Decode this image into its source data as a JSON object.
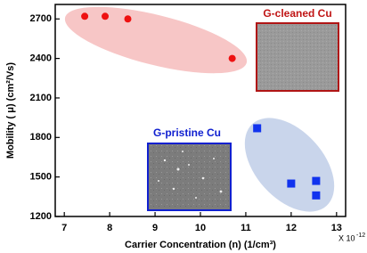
{
  "chart_data": {
    "type": "scatter",
    "xlabel": "Carrier Concentration (n) (1/cm³)",
    "ylabel": "Mobility ( μ) (cm²/Vs)",
    "x_multiplier": "X 10",
    "x_exponent": "-12",
    "annotations": [
      "G-cleaned Cu",
      "G-pristine Cu"
    ],
    "xlim": [
      6.8,
      13.2
    ],
    "xticks": [
      7,
      8,
      9,
      10,
      11,
      12,
      13
    ],
    "ylim": [
      1200,
      2810
    ],
    "yticks": [
      1200,
      1500,
      1800,
      2100,
      2400,
      2700
    ],
    "series": [
      {
        "color": "#ee1111",
        "marker": "circle",
        "x": [
          7.45,
          7.9,
          8.4,
          10.7
        ],
        "values": [
          2720,
          2720,
          2700,
          2400
        ]
      },
      {
        "color": "#1133ee",
        "marker": "square",
        "x": [
          11.25,
          12.0,
          12.55,
          12.55
        ],
        "values": [
          1870,
          1450,
          1470,
          1360
        ]
      }
    ]
  }
}
